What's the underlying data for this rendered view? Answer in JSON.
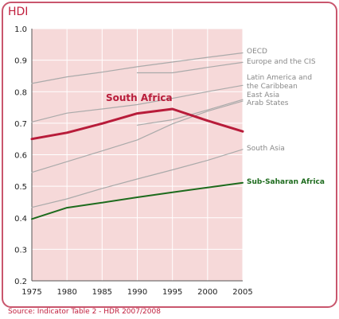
{
  "chart_data": {
    "type": "line",
    "title": "HDI",
    "source": "Source: Indicator Table 2 - HDR 2007/2008",
    "x": [
      1975,
      1980,
      1985,
      1990,
      1995,
      2000,
      2005
    ],
    "xlim": [
      1975,
      2005
    ],
    "ylim": [
      0.2,
      1.0
    ],
    "y_ticks": [
      "0.2",
      "0.3",
      "0.4",
      "0.5",
      "0.6",
      "0.7",
      "0.8",
      "0.9",
      "1.0"
    ],
    "x_ticks": [
      "1975",
      "1980",
      "1985",
      "1990",
      "1995",
      "2000",
      "2005"
    ],
    "grid": true,
    "series": [
      {
        "name": "OECD",
        "color": "#aaaaaa",
        "highlight": false,
        "label_side": "right",
        "points": [
          [
            1975,
            0.826
          ],
          [
            1980,
            0.847
          ],
          [
            1985,
            0.862
          ],
          [
            1990,
            0.879
          ],
          [
            1995,
            0.894
          ],
          [
            2000,
            0.909
          ],
          [
            2005,
            0.923
          ]
        ]
      },
      {
        "name": "Europe and the CIS",
        "color": "#aaaaaa",
        "highlight": false,
        "label_side": "right",
        "points": [
          [
            1990,
            0.86
          ],
          [
            1995,
            0.86
          ],
          [
            2000,
            0.877
          ],
          [
            2005,
            0.893
          ]
        ]
      },
      {
        "name": "Latin America and the Caribbean",
        "color": "#aaaaaa",
        "highlight": false,
        "label_side": "right",
        "label_lines": [
          "Latin America and",
          "the Caribbean"
        ],
        "points": [
          [
            1975,
            0.704
          ],
          [
            1980,
            0.732
          ],
          [
            1985,
            0.745
          ],
          [
            1990,
            0.759
          ],
          [
            1995,
            0.779
          ],
          [
            2000,
            0.8
          ],
          [
            2005,
            0.82
          ]
        ]
      },
      {
        "name": "East Asia",
        "color": "#aaaaaa",
        "highlight": false,
        "label_side": "right",
        "points": [
          [
            1975,
            0.544
          ],
          [
            1980,
            0.578
          ],
          [
            1985,
            0.612
          ],
          [
            1990,
            0.647
          ],
          [
            1995,
            0.698
          ],
          [
            2000,
            0.738
          ],
          [
            2005,
            0.77
          ]
        ]
      },
      {
        "name": "Arab States",
        "color": "#aaaaaa",
        "highlight": false,
        "label_side": "right",
        "points": [
          [
            1990,
            0.694
          ],
          [
            1995,
            0.711
          ],
          [
            2000,
            0.742
          ],
          [
            2005,
            0.775
          ]
        ]
      },
      {
        "name": "South Asia",
        "color": "#aaaaaa",
        "highlight": false,
        "label_side": "right",
        "points": [
          [
            1975,
            0.433
          ],
          [
            1980,
            0.46
          ],
          [
            1985,
            0.493
          ],
          [
            1990,
            0.523
          ],
          [
            1995,
            0.552
          ],
          [
            2000,
            0.582
          ],
          [
            2005,
            0.617
          ]
        ]
      },
      {
        "name": "Sub-Saharan Africa",
        "color": "#1d6b1d",
        "highlight": true,
        "label_side": "right",
        "points": [
          [
            1975,
            0.396
          ],
          [
            1980,
            0.432
          ],
          [
            1985,
            0.448
          ],
          [
            1990,
            0.465
          ],
          [
            1995,
            0.481
          ],
          [
            2000,
            0.496
          ],
          [
            2005,
            0.511
          ]
        ]
      },
      {
        "name": "South Africa",
        "color": "#b81c3a",
        "highlight": true,
        "label_side": "inside",
        "points": [
          [
            1975,
            0.65
          ],
          [
            1980,
            0.67
          ],
          [
            1985,
            0.699
          ],
          [
            1990,
            0.731
          ],
          [
            1995,
            0.745
          ],
          [
            2000,
            0.708
          ],
          [
            2005,
            0.674
          ]
        ]
      }
    ]
  }
}
